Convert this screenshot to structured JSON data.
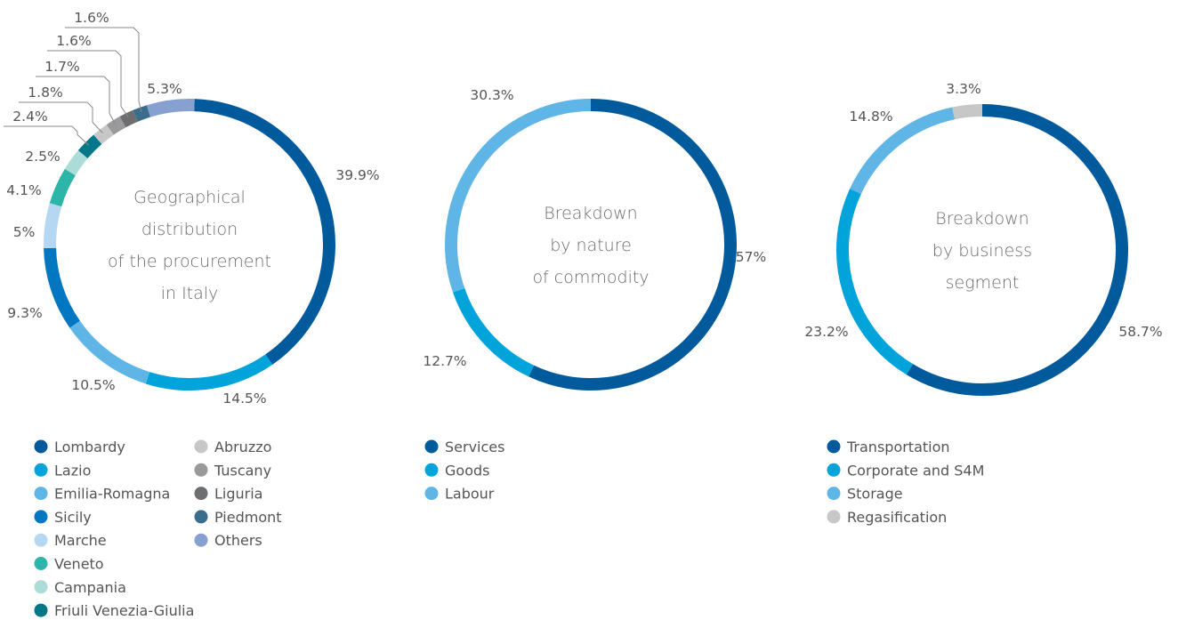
{
  "chart_data": [
    {
      "type": "pie",
      "variant": "donut",
      "title": "Geographical distribution of the procurement in Italy",
      "title_lines": [
        "Geographical",
        "distribution",
        "of the procurement",
        "in Italy"
      ],
      "slices": [
        {
          "label": "Lombardy",
          "value": 39.9,
          "value_label": "39.9%",
          "color": "#005a9c"
        },
        {
          "label": "Lazio",
          "value": 14.5,
          "value_label": "14.5%",
          "color": "#00a3da"
        },
        {
          "label": "Emilia-Romagna",
          "value": 10.5,
          "value_label": "10.5%",
          "color": "#5fb6e6"
        },
        {
          "label": "Sicily",
          "value": 9.3,
          "value_label": "9.3%",
          "color": "#0077c0"
        },
        {
          "label": "Marche",
          "value": 5,
          "value_label": "5%",
          "color": "#b5d7f2"
        },
        {
          "label": "Veneto",
          "value": 4.1,
          "value_label": "4.1%",
          "color": "#2db5aa"
        },
        {
          "label": "Campania",
          "value": 2.5,
          "value_label": "2.5%",
          "color": "#acdcd8"
        },
        {
          "label": "Friuli Venezia-Giulia",
          "value": 2.4,
          "value_label": "2.4%",
          "color": "#00788a"
        },
        {
          "label": "Abruzzo",
          "value": 1.8,
          "value_label": "1.8%",
          "color": "#c7c7c7"
        },
        {
          "label": "Tuscany",
          "value": 1.7,
          "value_label": "1.7%",
          "color": "#9a9a9a"
        },
        {
          "label": "Liguria",
          "value": 1.6,
          "value_label": "1.6%",
          "color": "#6d6e70"
        },
        {
          "label": "Piedmont",
          "value": 1.6,
          "value_label": "1.6%",
          "color": "#3a6d8c"
        },
        {
          "label": "Others",
          "value": 5.3,
          "value_label": "5.3%",
          "color": "#86a1d0"
        }
      ],
      "legend": {
        "placement": "bottom",
        "columns": 2
      }
    },
    {
      "type": "pie",
      "variant": "donut",
      "title": "Breakdown by nature of commodity",
      "title_lines": [
        "Breakdown",
        "by nature",
        "of commodity"
      ],
      "slices": [
        {
          "label": "Services",
          "value": 57,
          "value_label": "57%",
          "color": "#005a9c"
        },
        {
          "label": "Goods",
          "value": 12.7,
          "value_label": "12.7%",
          "color": "#00a3da"
        },
        {
          "label": "Labour",
          "value": 30.3,
          "value_label": "30.3%",
          "color": "#5fb6e6"
        }
      ],
      "legend": {
        "placement": "bottom",
        "columns": 1
      }
    },
    {
      "type": "pie",
      "variant": "donut",
      "title": "Breakdown by business segment",
      "title_lines": [
        "Breakdown",
        "by business",
        "segment"
      ],
      "slices": [
        {
          "label": "Transportation",
          "value": 58.7,
          "value_label": "58.7%",
          "color": "#005a9c"
        },
        {
          "label": "Corporate and S4M",
          "value": 23.2,
          "value_label": "23.2%",
          "color": "#00a3da"
        },
        {
          "label": "Storage",
          "value": 14.8,
          "value_label": "14.8%",
          "color": "#5fb6e6"
        },
        {
          "label": "Regasification",
          "value": 3.3,
          "value_label": "3.3%",
          "color": "#c7c7c7"
        }
      ],
      "legend": {
        "placement": "bottom",
        "columns": 1
      }
    }
  ]
}
